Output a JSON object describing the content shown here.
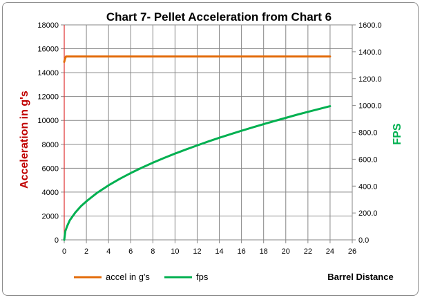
{
  "chart_data": {
    "type": "line",
    "title": "Chart 7- Pellet Acceleration from Chart 6",
    "xlabel": "Barrel Distance",
    "ylabel_left": "Acceleration in g's",
    "ylabel_right": "FPS",
    "xlim": [
      0,
      26
    ],
    "ylim_left": [
      0,
      18000
    ],
    "ylim_right": [
      0,
      1600
    ],
    "x_ticks": [
      "0",
      "2",
      "4",
      "6",
      "8",
      "10",
      "12",
      "14",
      "16",
      "18",
      "20",
      "22",
      "24",
      "26"
    ],
    "y_left_ticks": [
      "0",
      "2000",
      "4000",
      "6000",
      "8000",
      "10000",
      "12000",
      "14000",
      "16000",
      "18000"
    ],
    "y_right_ticks": [
      "0.0",
      "200.0",
      "400.0",
      "600.0",
      "800.0",
      "1000.0",
      "1200.0",
      "1400.0",
      "1600.0"
    ],
    "grid": true,
    "legend_position": "bottom-left",
    "series": [
      {
        "name": "accel  in  g's",
        "axis": "left",
        "color": "#E36C0A",
        "x": [
          0,
          0.05,
          0.15,
          0.3,
          24
        ],
        "y": [
          14900,
          15100,
          15350,
          15350,
          15350
        ]
      },
      {
        "name": "fps",
        "axis": "right",
        "color": "#00B050",
        "x": [
          0,
          0.1,
          0.25,
          0.5,
          1,
          1.5,
          2,
          3,
          4,
          5,
          6,
          7,
          8,
          9,
          10,
          11,
          12,
          13,
          14,
          15,
          16,
          17,
          18,
          19,
          20,
          21,
          22,
          23,
          24
        ],
        "y": [
          0,
          65,
          100,
          145,
          203,
          250,
          287,
          352,
          406,
          454,
          497,
          537,
          574,
          609,
          642,
          673,
          703,
          732,
          760,
          786,
          812,
          837,
          861,
          885,
          908,
          931,
          953,
          974,
          995
        ]
      }
    ]
  }
}
